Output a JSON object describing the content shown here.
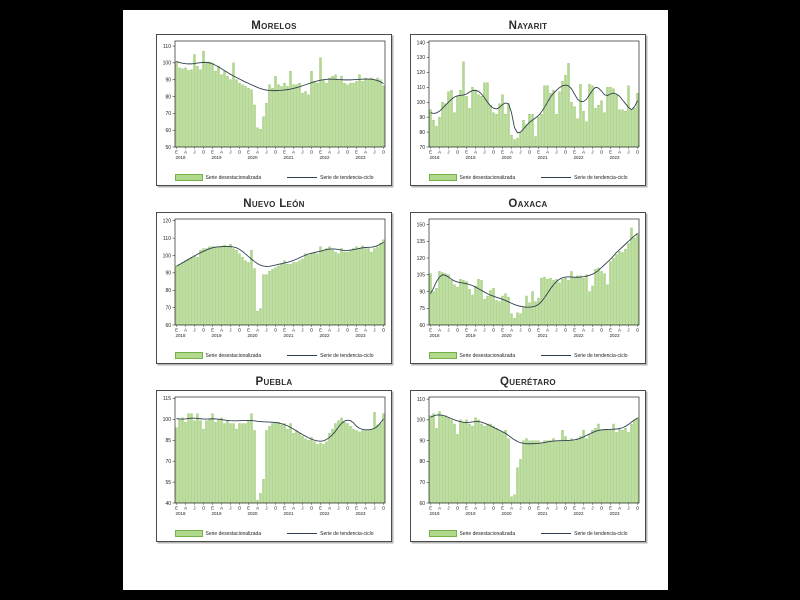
{
  "page": {
    "background": "#000000",
    "sheet_background": "#ffffff"
  },
  "colors": {
    "bar_fill": "#b1d98b",
    "bar_edge": "#77b04a",
    "trend_line": "#2f3f50",
    "text": "#1a1a1a",
    "plot_border": "#000000",
    "box_border": "#4a4a4a"
  },
  "legend": {
    "bars_label": "Serie desestacionalizada",
    "trend_label": "Serie de tendencia-ciclo"
  },
  "axis": {
    "month_cycle": [
      "E",
      "A",
      "J",
      "O"
    ],
    "years": [
      "2018",
      "2019",
      "2020",
      "2021",
      "2022",
      "2023"
    ],
    "n_points": 70
  },
  "chart_data": [
    {
      "type": "bar",
      "title": "Morelos",
      "ylabel": "",
      "xlabel": "",
      "ylim": [
        50,
        113
      ],
      "yticks": [
        50,
        60,
        70,
        80,
        90,
        100,
        110
      ],
      "series": [
        {
          "name": "Serie desestacionalizada",
          "kind": "bar",
          "values": [
            101,
            97,
            96.5,
            97,
            95.5,
            96,
            105,
            98,
            96,
            107,
            100,
            100.5,
            100,
            95,
            98,
            93,
            95,
            92,
            90,
            100,
            90,
            88,
            87,
            86,
            85,
            84,
            75,
            61.5,
            60.5,
            68,
            76,
            87,
            85,
            92,
            87,
            86,
            88,
            86,
            95,
            87,
            87,
            88,
            82,
            83,
            81,
            95,
            89,
            88,
            103,
            90,
            88,
            91,
            92,
            93,
            90,
            92,
            88,
            87,
            88,
            88,
            89,
            93,
            89,
            91,
            90,
            91,
            90,
            91,
            90,
            86.5
          ]
        },
        {
          "name": "Serie de tendencia-ciclo",
          "kind": "line",
          "values": [
            100.8,
            100.2,
            99.8,
            99.5,
            99.4,
            99.4,
            99.6,
            99.9,
            100.1,
            100.3,
            100.3,
            100,
            99.4,
            98.6,
            97.6,
            96.5,
            95.4,
            94.3,
            93.2,
            92.2,
            91.3,
            90.4,
            89.5,
            88.6,
            87.8,
            87,
            86.2,
            85.4,
            84.7,
            84.2,
            83.8,
            83.6,
            83.5,
            83.5,
            83.6,
            83.7,
            83.9,
            84.1,
            84.4,
            84.8,
            85.3,
            85.8,
            86.4,
            87,
            87.6,
            88.2,
            88.8,
            89.3,
            89.7,
            90,
            90.2,
            90.3,
            90.3,
            90.2,
            90.1,
            90,
            89.9,
            89.9,
            89.9,
            90,
            90.1,
            90.2,
            90.3,
            90.4,
            90.4,
            90.3,
            90,
            89.5,
            88.7,
            87.7
          ]
        }
      ]
    },
    {
      "type": "bar",
      "title": "Nayarit",
      "ylabel": "",
      "xlabel": "",
      "ylim": [
        70,
        141
      ],
      "yticks": [
        70,
        80,
        90,
        100,
        110,
        120,
        130,
        140
      ],
      "series": [
        {
          "name": "Serie desestacionalizada",
          "kind": "bar",
          "values": [
            95,
            88,
            84,
            90,
            100,
            99,
            107,
            108,
            93,
            104,
            108,
            127,
            104,
            96,
            110,
            108,
            105,
            104,
            113,
            113,
            98,
            93,
            92,
            99,
            105,
            92,
            99,
            78,
            75,
            76,
            80,
            88,
            85,
            92,
            92,
            77,
            90,
            92,
            111,
            111,
            106,
            108,
            92,
            107,
            114,
            118,
            126,
            100,
            97,
            89,
            112,
            94,
            87,
            112,
            111,
            96,
            98,
            101,
            93,
            110,
            110,
            109,
            105,
            95,
            95,
            94,
            111,
            95,
            96,
            106
          ]
        },
        {
          "name": "Serie de tendencia-ciclo",
          "kind": "line",
          "values": [
            93,
            92.5,
            92.8,
            94,
            96,
            98,
            100,
            102,
            103.5,
            104.3,
            104.6,
            104.8,
            105.5,
            106.8,
            107.8,
            108,
            107.3,
            105.5,
            103,
            100,
            97.5,
            96,
            95.5,
            96.5,
            98.5,
            99.5,
            99,
            93,
            83,
            79.5,
            80,
            82,
            84.5,
            86.5,
            88,
            89.5,
            91,
            93.5,
            96.5,
            100,
            103.5,
            106,
            108,
            109.8,
            111,
            111.5,
            111,
            109,
            105.5,
            102,
            100.5,
            100.5,
            102,
            105,
            108,
            110,
            109.5,
            107.5,
            105,
            104.5,
            105.5,
            106,
            105.5,
            104,
            101.5,
            99,
            96.5,
            95,
            97,
            101
          ]
        }
      ]
    },
    {
      "type": "bar",
      "title": "Nuevo León",
      "ylabel": "",
      "xlabel": "",
      "ylim": [
        60,
        121
      ],
      "yticks": [
        60,
        70,
        80,
        90,
        100,
        110,
        120
      ],
      "series": [
        {
          "name": "Serie desestacionalizada",
          "kind": "bar",
          "values": [
            94,
            95,
            96,
            97,
            98,
            99,
            100,
            99,
            103,
            104,
            104,
            105,
            105,
            105,
            105,
            105,
            106,
            105,
            106.5,
            104,
            103,
            101,
            99,
            97,
            96,
            103,
            92.5,
            68,
            69.5,
            89,
            89,
            91,
            92,
            93,
            94,
            95,
            97,
            95,
            95,
            96,
            96,
            97,
            98,
            101,
            100,
            101,
            102,
            101,
            105,
            103,
            104,
            105,
            103,
            102,
            101,
            104,
            102,
            102,
            103,
            104,
            105,
            104,
            105.5,
            104,
            104,
            102,
            104,
            105,
            107,
            109
          ]
        },
        {
          "name": "Serie de tendencia-ciclo",
          "kind": "line",
          "values": [
            93.8,
            94.8,
            95.8,
            96.8,
            97.8,
            98.8,
            99.8,
            100.7,
            101.6,
            102.4,
            103.2,
            103.9,
            104.4,
            104.8,
            105,
            105.1,
            105.2,
            105.2,
            105.1,
            104.9,
            104.4,
            103.5,
            102.3,
            100.9,
            99.4,
            97.9,
            96.5,
            95.3,
            94.4,
            93.9,
            93.7,
            93.8,
            94.1,
            94.5,
            94.9,
            95.3,
            95.7,
            96.1,
            96.6,
            97.2,
            97.9,
            98.7,
            99.5,
            100.2,
            100.8,
            101.3,
            101.7,
            102.1,
            102.5,
            103,
            103.4,
            103.7,
            103.8,
            103.7,
            103.4,
            103.1,
            102.9,
            102.9,
            103.1,
            103.4,
            103.7,
            104.1,
            104.4,
            104.6,
            104.7,
            104.8,
            105.1,
            105.7,
            106.6,
            107.6
          ]
        }
      ]
    },
    {
      "type": "bar",
      "title": "Oaxaca",
      "ylabel": "",
      "xlabel": "",
      "ylim": [
        60,
        155
      ],
      "yticks": [
        60,
        75,
        90,
        105,
        120,
        135,
        150
      ],
      "series": [
        {
          "name": "Serie desestacionalizada",
          "kind": "bar",
          "values": [
            106,
            90,
            93,
            108,
            107,
            106,
            105,
            100,
            96,
            94,
            101,
            100,
            99,
            92,
            87,
            95,
            101,
            100,
            83,
            86,
            91,
            93,
            82,
            81,
            86,
            88,
            85,
            70,
            66,
            71,
            70,
            76,
            86,
            80,
            90,
            81,
            84,
            102,
            103,
            101,
            102,
            100,
            101,
            98,
            101,
            102,
            100,
            108,
            102,
            104,
            104,
            102,
            105,
            90,
            95,
            110,
            111,
            108,
            106,
            96,
            117,
            120,
            123,
            126,
            125,
            128,
            133,
            147,
            138,
            142
          ]
        },
        {
          "name": "Serie de tendencia-ciclo",
          "kind": "line",
          "values": [
            88,
            93,
            99,
            103,
            105,
            104.5,
            103,
            101,
            99.5,
            98.5,
            98,
            97.5,
            97,
            96.3,
            95.3,
            94,
            92.5,
            91,
            89.5,
            88,
            86.8,
            85.8,
            84.8,
            84,
            83,
            82,
            80.8,
            79.5,
            78.3,
            77.4,
            76.8,
            76.3,
            76,
            76,
            76.3,
            77,
            78.5,
            81,
            84.5,
            88.5,
            92.5,
            96,
            99,
            101,
            102.3,
            103,
            103.2,
            103,
            102.8,
            102.8,
            103,
            103.3,
            103.8,
            104.5,
            105.5,
            107,
            109,
            111.5,
            114,
            116.5,
            119,
            122,
            125,
            127.5,
            130,
            132.5,
            135,
            137.5,
            140,
            142
          ]
        }
      ]
    },
    {
      "type": "bar",
      "title": "Puebla",
      "ylabel": "",
      "xlabel": "",
      "ylim": [
        40,
        116
      ],
      "yticks": [
        40,
        55,
        70,
        85,
        100,
        115
      ],
      "series": [
        {
          "name": "Serie desestacionalizada",
          "kind": "bar",
          "values": [
            94,
            100,
            101,
            98,
            104,
            104,
            99,
            104,
            99,
            93,
            99,
            100,
            104,
            98,
            100,
            101,
            97,
            99,
            97,
            97,
            93,
            97,
            97,
            97,
            99,
            104,
            92,
            42,
            47,
            57,
            92,
            95,
            97,
            98,
            98,
            96,
            97,
            93,
            97,
            90,
            92,
            90,
            88,
            86,
            85,
            87,
            84,
            82,
            83,
            82,
            84,
            90,
            93,
            97,
            99,
            101,
            98,
            97,
            95,
            93,
            92,
            91,
            92,
            92,
            92,
            93,
            105,
            96,
            97,
            104
          ]
        },
        {
          "name": "Serie de tendencia-ciclo",
          "kind": "line",
          "values": [
            100.5,
            100.3,
            100.2,
            100.3,
            100.6,
            100.8,
            100.8,
            100.6,
            100.4,
            100.2,
            100.2,
            100.3,
            100.4,
            100.3,
            100.1,
            99.8,
            99.5,
            99.2,
            99,
            98.9,
            98.9,
            99,
            99.1,
            99.2,
            99.2,
            99.1,
            98.9,
            98.6,
            98.4,
            98.2,
            98.1,
            98,
            97.9,
            97.7,
            97.4,
            96.9,
            96.2,
            95.3,
            94.2,
            93,
            91.7,
            90.4,
            89.1,
            87.9,
            86.8,
            85.8,
            85,
            84.5,
            84.3,
            84.6,
            85.5,
            87,
            89,
            91.5,
            94.5,
            97,
            98.8,
            99.4,
            99,
            97.5,
            95,
            93.5,
            92.8,
            92.5,
            92.5,
            92.8,
            93.5,
            95,
            97.5,
            100.3
          ]
        }
      ]
    },
    {
      "type": "bar",
      "title": "Querétaro",
      "ylabel": "",
      "xlabel": "",
      "ylim": [
        60,
        111
      ],
      "yticks": [
        60,
        70,
        80,
        90,
        100,
        110
      ],
      "series": [
        {
          "name": "Serie desestacionalizada",
          "kind": "bar",
          "values": [
            102,
            103,
            96,
            104,
            102,
            102,
            101,
            100,
            98,
            93,
            100,
            99,
            100,
            98,
            97,
            101,
            100,
            98,
            97,
            98,
            98,
            97,
            96,
            95,
            94,
            95,
            91,
            63,
            64,
            77,
            81,
            90,
            91,
            90,
            90,
            90,
            90,
            89,
            90,
            90,
            90,
            91,
            90,
            90,
            95,
            92,
            90,
            91,
            90,
            91,
            92,
            95,
            91,
            93,
            95,
            96,
            98,
            95,
            95,
            95,
            95,
            98,
            94,
            96,
            95,
            96,
            94,
            98,
            100,
            101
          ]
        },
        {
          "name": "Serie de tendencia-ciclo",
          "kind": "line",
          "values": [
            101.3,
            101.9,
            102.3,
            102.4,
            102.2,
            101.8,
            101.2,
            100.6,
            100,
            99.5,
            99.1,
            98.8,
            98.7,
            98.8,
            99,
            99.2,
            99.2,
            98.9,
            98.4,
            97.8,
            97.1,
            96.4,
            95.7,
            95,
            94.3,
            93.5,
            92.5,
            91.4,
            90.4,
            89.6,
            89,
            88.7,
            88.5,
            88.5,
            88.5,
            88.6,
            88.7,
            88.9,
            89.1,
            89.4,
            89.6,
            89.8,
            89.9,
            90,
            90,
            90.1,
            90.1,
            90.2,
            90.4,
            90.7,
            91.2,
            91.8,
            92.5,
            93.2,
            93.9,
            94.5,
            94.9,
            95.2,
            95.3,
            95.4,
            95.4,
            95.5,
            95.6,
            95.8,
            96.2,
            96.9,
            97.8,
            98.9,
            100,
            100.8
          ]
        }
      ]
    }
  ]
}
